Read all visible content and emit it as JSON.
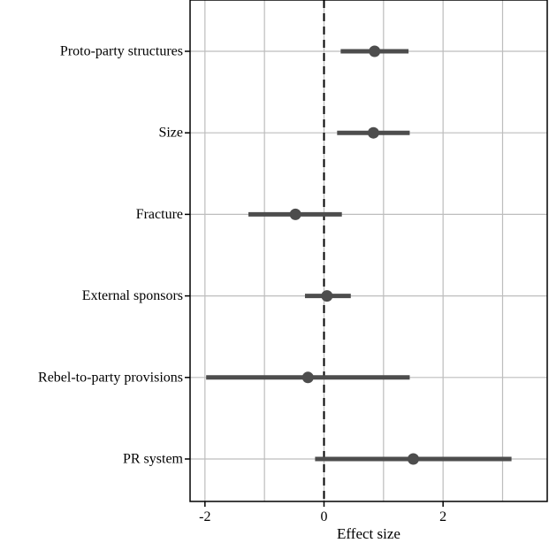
{
  "chart_data": {
    "type": "scatter",
    "subtype": "coefficient-plot",
    "title": "",
    "xlabel": "Effect size",
    "ylabel": "",
    "xlim": [
      -2.25,
      3.75
    ],
    "x_ticks": [
      -2,
      0,
      2
    ],
    "x_tick_labels": [
      "-2",
      "0",
      "2"
    ],
    "reference_line": {
      "x": 0,
      "style": "dashed"
    },
    "grid": true,
    "legend": "none",
    "colors": {
      "point": "#4d4d4d",
      "interval": "#4d4d4d",
      "grid": "#bdbdbd",
      "frame": "#000000"
    },
    "points": [
      {
        "label": "Proto-party structures",
        "estimate": 0.85,
        "lower": 0.28,
        "upper": 1.42
      },
      {
        "label": "Size",
        "estimate": 0.83,
        "lower": 0.22,
        "upper": 1.44
      },
      {
        "label": "Fracture",
        "estimate": -0.48,
        "lower": -1.27,
        "upper": 0.3
      },
      {
        "label": "External sponsors",
        "estimate": 0.05,
        "lower": -0.32,
        "upper": 0.45
      },
      {
        "label": "Rebel-to-party provisions",
        "estimate": -0.27,
        "lower": -1.98,
        "upper": 1.44
      },
      {
        "label": "PR system",
        "estimate": 1.5,
        "lower": -0.15,
        "upper": 3.15
      }
    ]
  }
}
